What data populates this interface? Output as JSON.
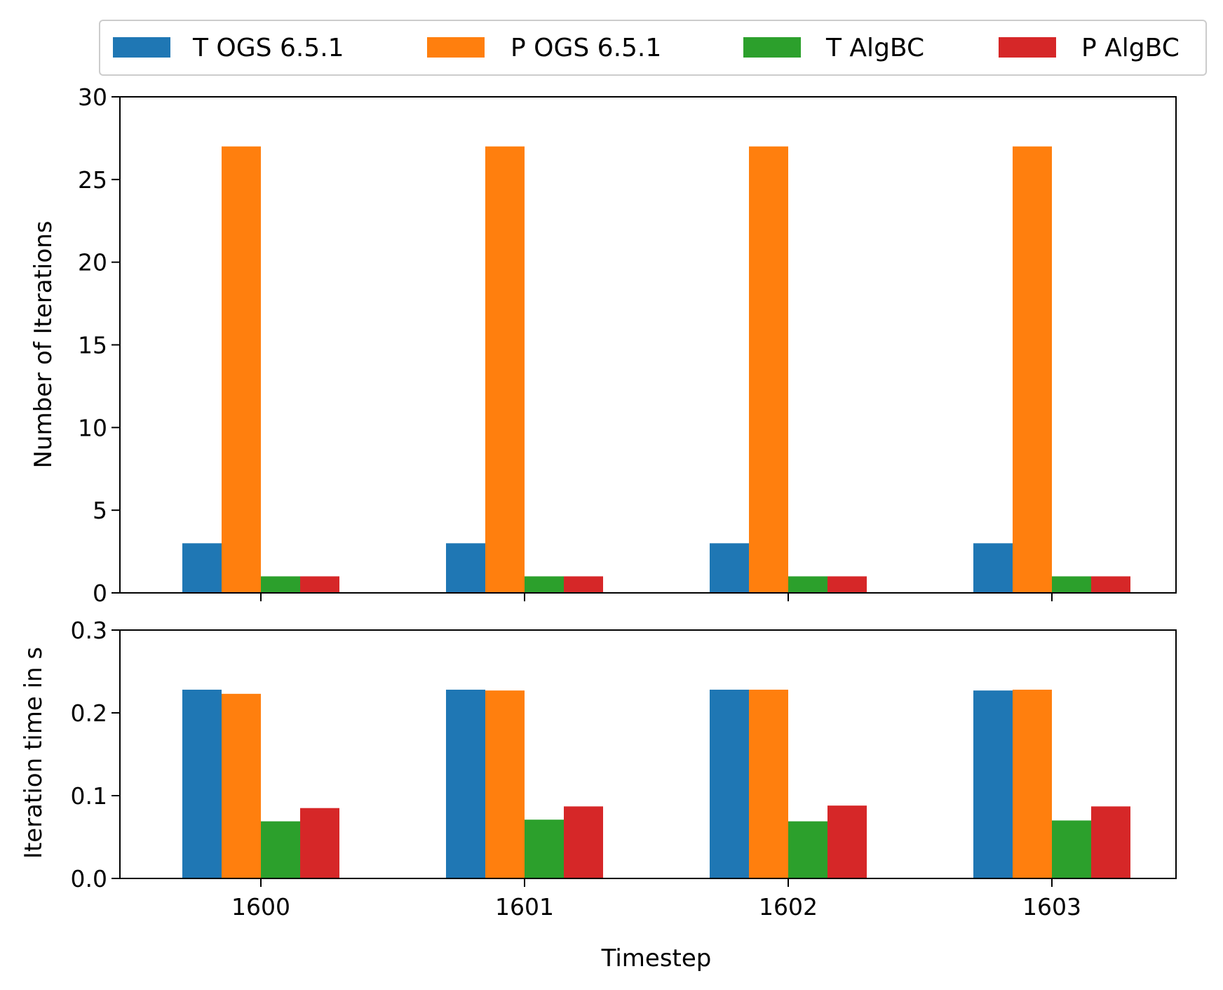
{
  "chart_data": [
    {
      "type": "bar",
      "panel": "top",
      "categories": [
        "1600",
        "1601",
        "1602",
        "1603"
      ],
      "series": [
        {
          "name": "T OGS 6.5.1",
          "color": "#1f77b4",
          "values": [
            3,
            3,
            3,
            3
          ]
        },
        {
          "name": "P OGS 6.5.1",
          "color": "#ff7f0e",
          "values": [
            27,
            27,
            27,
            27
          ]
        },
        {
          "name": "T AlgBC",
          "color": "#2ca02c",
          "values": [
            1,
            1,
            1,
            1
          ]
        },
        {
          "name": "P AlgBC",
          "color": "#d62728",
          "values": [
            1,
            1,
            1,
            1
          ]
        }
      ],
      "xlabel": "",
      "ylabel": "Number of Iterations",
      "ylim": [
        0,
        30
      ],
      "yticks": [
        "0",
        "5",
        "10",
        "15",
        "20",
        "25",
        "30"
      ],
      "show_xtick_labels": false,
      "grid": false
    },
    {
      "type": "bar",
      "panel": "bottom",
      "categories": [
        "1600",
        "1601",
        "1602",
        "1603"
      ],
      "series": [
        {
          "name": "T OGS 6.5.1",
          "color": "#1f77b4",
          "values": [
            0.228,
            0.228,
            0.228,
            0.227
          ]
        },
        {
          "name": "P OGS 6.5.1",
          "color": "#ff7f0e",
          "values": [
            0.223,
            0.227,
            0.228,
            0.228
          ]
        },
        {
          "name": "T AlgBC",
          "color": "#2ca02c",
          "values": [
            0.069,
            0.071,
            0.069,
            0.07
          ]
        },
        {
          "name": "P AlgBC",
          "color": "#d62728",
          "values": [
            0.085,
            0.087,
            0.088,
            0.087
          ]
        }
      ],
      "xlabel": "Timestep",
      "ylabel": "Iteration time in s",
      "ylim": [
        0,
        0.3
      ],
      "yticks": [
        "0.0",
        "0.1",
        "0.2",
        "0.3"
      ],
      "show_xtick_labels": true,
      "grid": false
    }
  ],
  "legend": {
    "placement": "top",
    "items": [
      {
        "label": "T OGS 6.5.1",
        "color": "#1f77b4"
      },
      {
        "label": "P OGS 6.5.1",
        "color": "#ff7f0e"
      },
      {
        "label": "T AlgBC",
        "color": "#2ca02c"
      },
      {
        "label": "P AlgBC",
        "color": "#d62728"
      }
    ]
  }
}
